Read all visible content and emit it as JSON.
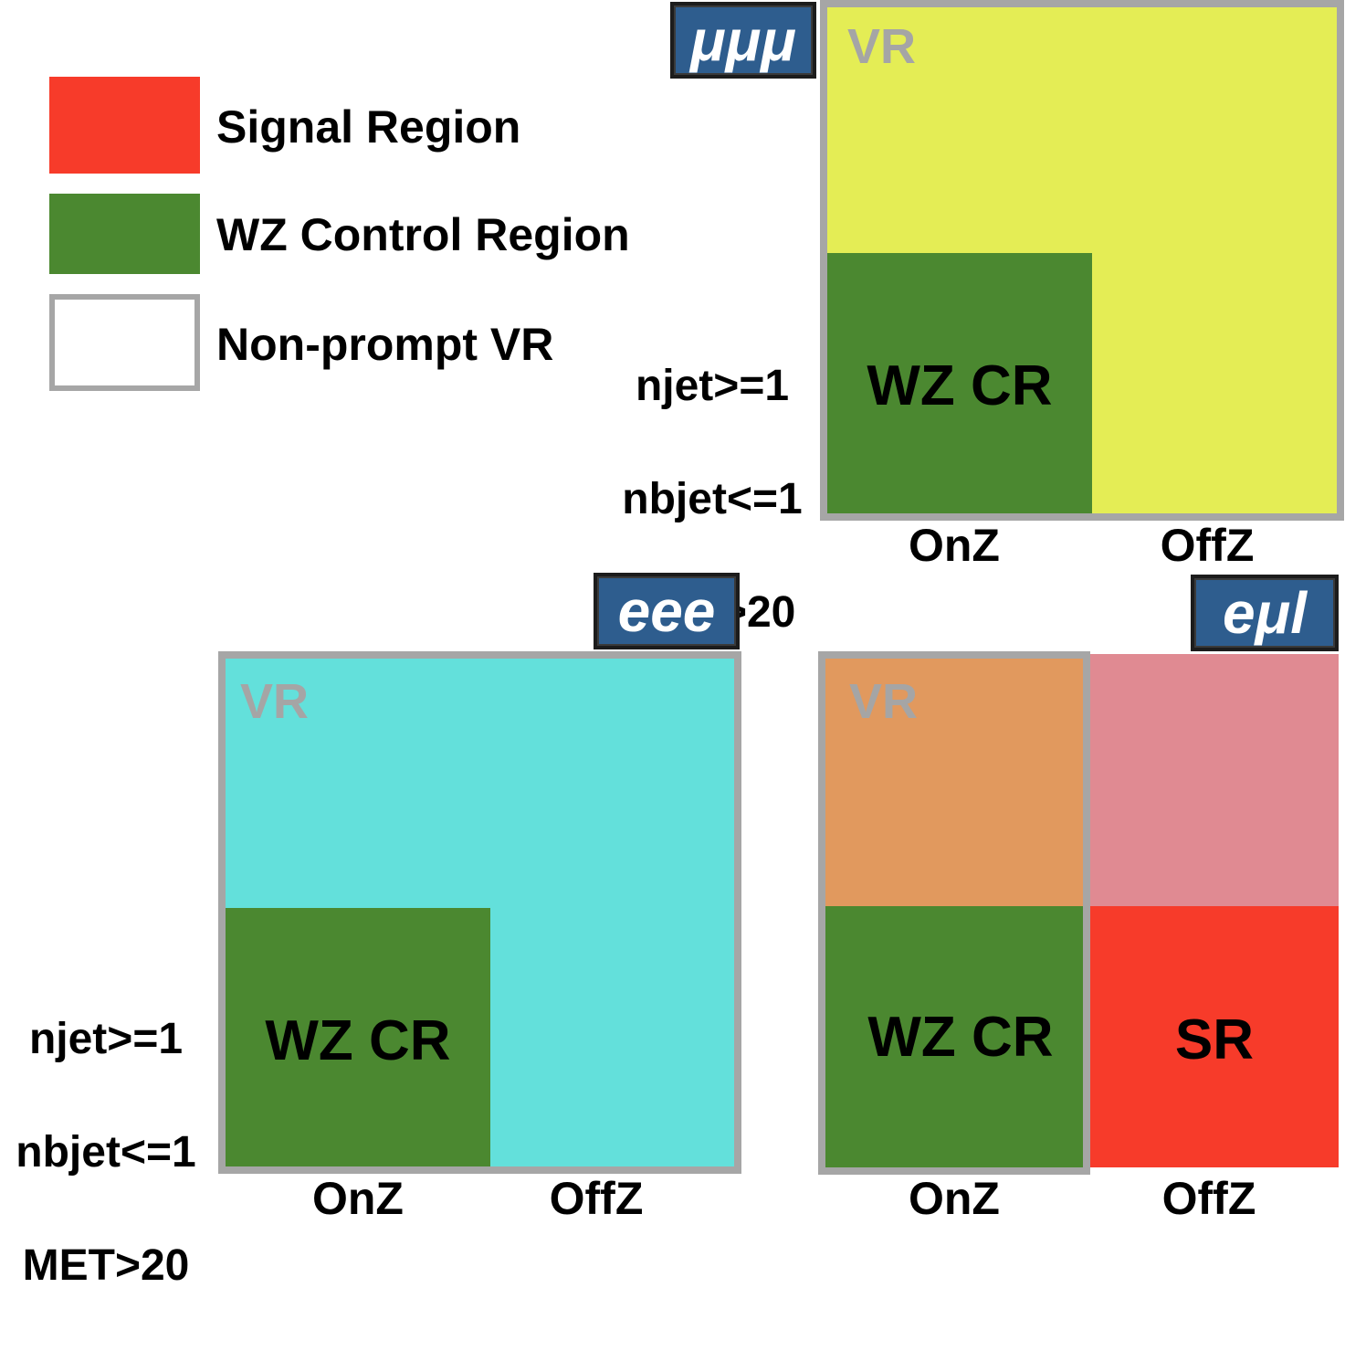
{
  "colors": {
    "signal": "#f73b2a",
    "wz_control": "#4b8830",
    "frame": "#a6a6a6",
    "vr_label": "#a5a5a5",
    "mumumu_fill": "#e4ed55",
    "eee_fill": "#63e0db",
    "emul_vr_fill": "#e1995e",
    "emul_offz_upper_fill": "#e08a92",
    "tag_background": "#2e5d8e"
  },
  "legend": {
    "signal": "Signal Region",
    "wz_control": "WZ Control Region",
    "nonprompt": "Non-prompt VR"
  },
  "cuts": {
    "njet": "njet>=1",
    "nbjet": "nbjet<=1",
    "met": "MET>20"
  },
  "axis": {
    "onz": "OnZ",
    "offz": "OffZ"
  },
  "regions": {
    "vr": "VR",
    "wz_cr": "WZ CR",
    "sr": "SR"
  },
  "panels": {
    "mumumu": {
      "tag": "μμμ"
    },
    "eee": {
      "tag": "eee"
    },
    "emul": {
      "tag": "eμl"
    }
  }
}
